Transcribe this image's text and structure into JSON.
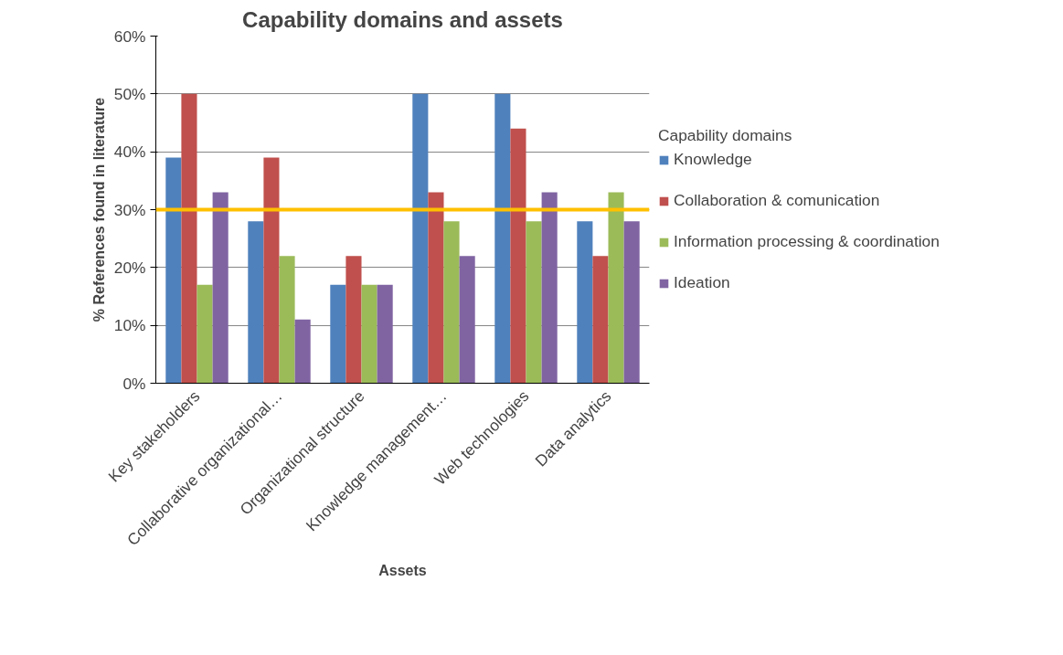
{
  "chart_data": {
    "type": "bar",
    "title": "Capability domains and assets",
    "xlabel": "Assets",
    "ylabel": "% References found in literature",
    "legend_title": "Capability domains",
    "categories": [
      "Key stakeholders",
      "Collaborative organizational…",
      "Organizational structure",
      "Knowledge management…",
      "Web technologies",
      "Data analytics"
    ],
    "series": [
      {
        "name": "Knowledge",
        "color": "#4f81bd",
        "values": [
          39,
          28,
          17,
          50,
          50,
          28
        ]
      },
      {
        "name": "Collaboration & comunication",
        "color": "#c0504d",
        "values": [
          50,
          39,
          22,
          33,
          44,
          22
        ]
      },
      {
        "name": "Information processing & coordination",
        "color": "#9bbb59",
        "values": [
          17,
          22,
          17,
          28,
          28,
          33
        ]
      },
      {
        "name": "Ideation",
        "color": "#8064a2",
        "values": [
          33,
          11,
          17,
          22,
          33,
          28
        ]
      }
    ],
    "ylim": [
      0,
      60
    ],
    "yticks": [
      {
        "value": 0,
        "label": "0%"
      },
      {
        "value": 10,
        "label": "10%"
      },
      {
        "value": 20,
        "label": "20%"
      },
      {
        "value": 30,
        "label": "30%"
      },
      {
        "value": 40,
        "label": "40%"
      },
      {
        "value": 50,
        "label": "50%"
      },
      {
        "value": 60,
        "label": "60%"
      }
    ],
    "ref_lines": [
      {
        "axis": "y",
        "value": 30,
        "color": "#ffc000"
      }
    ],
    "grid": "y",
    "legend": "right"
  }
}
